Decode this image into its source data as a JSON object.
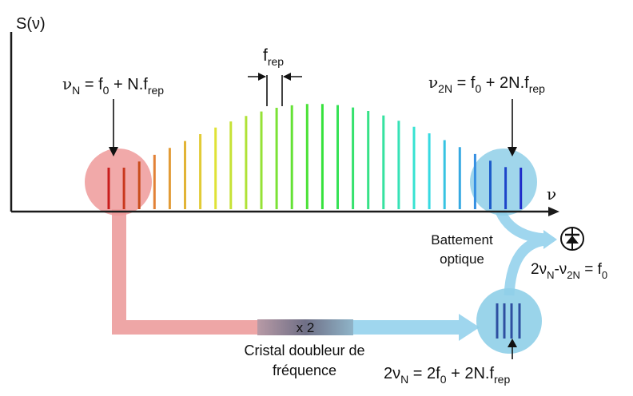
{
  "axes": {
    "y_label": "S(ν)",
    "x_label": "ν"
  },
  "comb": {
    "spacing_label_main": "f",
    "spacing_label_sub": "rep"
  },
  "annotations": {
    "nu_n": {
      "a": "ν",
      "a_sub": "N",
      "b": " = f",
      "b_sub": "0",
      "c": " + N.f",
      "c_sub": "rep"
    },
    "nu_2n": {
      "a": "ν",
      "a_sub": "2N",
      "b": " = f",
      "b_sub": "0",
      "c": " + 2N.f",
      "c_sub": "rep"
    },
    "doubled": {
      "a": "2ν",
      "a_sub": "N",
      "b": " = 2f",
      "b_sub": "0",
      "c": " + 2N.f",
      "c_sub": "rep"
    },
    "beat": {
      "a": "2ν",
      "a_sub": "N",
      "b": "-ν",
      "b_sub": "2N",
      "c": " = f",
      "c_sub": "0"
    }
  },
  "labels": {
    "multiplier": "x 2",
    "crystal_line1": "Cristal doubleur de",
    "crystal_line2": "fréquence",
    "beat_line1": "Battement",
    "beat_line2": "optique"
  },
  "icons": {
    "detector": "photodiode-icon"
  },
  "colors": {
    "red_path": "#eea6a6",
    "blue_path": "#9fd6ee",
    "red_circle": "#ee9a9a",
    "blue_circle": "#8fcfe8",
    "axis": "#1a1a1a"
  }
}
